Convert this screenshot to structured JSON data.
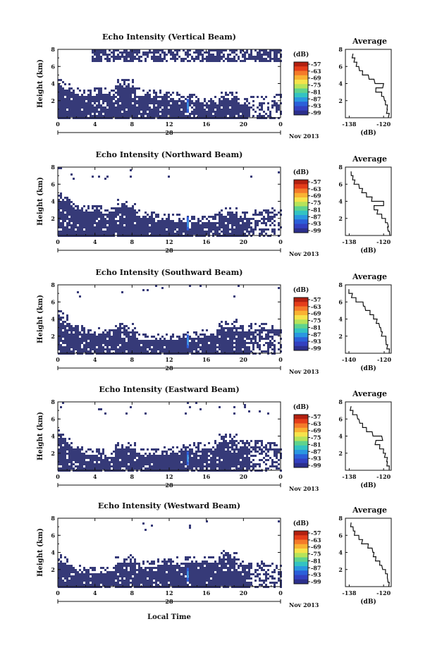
{
  "colorbar": {
    "unit": "(dB)",
    "labels": [
      "-57",
      "-63",
      "-69",
      "-75",
      "-81",
      "-87",
      "-93",
      "-99"
    ],
    "colors": [
      "#b22010",
      "#e43d1a",
      "#f47a2a",
      "#f9b233",
      "#f6e34b",
      "#b6e35a",
      "#5fd38d",
      "#33c3c2",
      "#2a97e0",
      "#2b5fd9",
      "#3340c0",
      "#2c2f8c"
    ]
  },
  "date_label": "Nov 2013",
  "day_label": "28",
  "xlabel": "Local Time",
  "ylabel": "Height (km)",
  "avg_title": "Average",
  "avg_xlabel": "(dB)",
  "chart_data": [
    {
      "type": "heatmap",
      "title": "Echo Intensity (Vertical Beam)",
      "x_ticks": [
        "0",
        "4",
        "8",
        "12",
        "16",
        "20",
        "0"
      ],
      "y_ticks": [
        "2",
        "4",
        "6",
        "8"
      ],
      "xlim": [
        0,
        24
      ],
      "ylim": [
        0,
        8
      ],
      "avg_profile": {
        "x_ticks": [
          "-138",
          "-120"
        ],
        "xlim": [
          -140,
          -116
        ],
        "y_ticks": [
          "2",
          "4",
          "6",
          "8"
        ],
        "heights": [
          0.5,
          1,
          1.5,
          2,
          2.5,
          3,
          3.5,
          4,
          4.5,
          5,
          5.5,
          6,
          6.5,
          7,
          7.5
        ],
        "values": [
          -117,
          -118,
          -118,
          -119,
          -120,
          -121,
          -124,
          -120,
          -125,
          -128,
          -131,
          -133,
          -134,
          -135,
          -136
        ]
      }
    },
    {
      "type": "heatmap",
      "title": "Echo Intensity (Northward Beam)",
      "x_ticks": [
        "0",
        "4",
        "8",
        "12",
        "16",
        "20",
        "0"
      ],
      "y_ticks": [
        "2",
        "4",
        "6",
        "8"
      ],
      "xlim": [
        0,
        24
      ],
      "ylim": [
        0,
        8
      ],
      "avg_profile": {
        "x_ticks": [
          "-138",
          "-120"
        ],
        "xlim": [
          -140,
          -116
        ],
        "y_ticks": [
          "2",
          "4",
          "6",
          "8"
        ],
        "heights": [
          0.5,
          1,
          1.5,
          2,
          2.5,
          3,
          3.5,
          4,
          4.5,
          5,
          5.5,
          6,
          6.5,
          7,
          7.5
        ],
        "values": [
          -117,
          -118,
          -118,
          -119,
          -121,
          -123,
          -125,
          -120,
          -126,
          -129,
          -131,
          -133,
          -135,
          -136,
          -137
        ]
      }
    },
    {
      "type": "heatmap",
      "title": "Echo Intensity (Southward Beam)",
      "x_ticks": [
        "0",
        "4",
        "8",
        "12",
        "16",
        "20",
        "0"
      ],
      "y_ticks": [
        "2",
        "4",
        "6",
        "8"
      ],
      "xlim": [
        0,
        24
      ],
      "ylim": [
        0,
        8
      ],
      "avg_profile": {
        "x_ticks": [
          "-140",
          "-120"
        ],
        "xlim": [
          -142,
          -116
        ],
        "y_ticks": [
          "2",
          "4",
          "6",
          "8"
        ],
        "heights": [
          0.5,
          1,
          1.5,
          2,
          2.5,
          3,
          3.5,
          4,
          4.5,
          5,
          5.5,
          6,
          6.5,
          7,
          7.5
        ],
        "values": [
          -117,
          -118,
          -119,
          -119,
          -121,
          -122,
          -123,
          -124,
          -126,
          -128,
          -131,
          -132,
          -136,
          -138,
          -140
        ]
      }
    },
    {
      "type": "heatmap",
      "title": "Echo Intensity (Eastward Beam)",
      "x_ticks": [
        "0",
        "4",
        "8",
        "12",
        "16",
        "20",
        "0"
      ],
      "y_ticks": [
        "2",
        "4",
        "6",
        "8"
      ],
      "xlim": [
        0,
        24
      ],
      "ylim": [
        0,
        8
      ],
      "avg_profile": {
        "x_ticks": [
          "-138",
          "-120"
        ],
        "xlim": [
          -140,
          -116
        ],
        "y_ticks": [
          "2",
          "4",
          "6",
          "8"
        ],
        "heights": [
          0.5,
          1,
          1.5,
          2,
          2.5,
          3,
          3.5,
          4,
          4.5,
          5,
          5.5,
          6,
          6.5,
          7,
          7.5
        ],
        "values": [
          -117,
          -118,
          -118,
          -119,
          -120,
          -122,
          -124,
          -121,
          -126,
          -129,
          -131,
          -133,
          -134,
          -136,
          -137
        ]
      }
    },
    {
      "type": "heatmap",
      "title": "Echo Intensity (Westward Beam)",
      "x_ticks": [
        "0",
        "4",
        "8",
        "12",
        "16",
        "20",
        "0"
      ],
      "y_ticks": [
        "2",
        "4",
        "6",
        "8"
      ],
      "xlim": [
        0,
        24
      ],
      "ylim": [
        0,
        8
      ],
      "avg_profile": {
        "x_ticks": [
          "-138",
          "-120"
        ],
        "xlim": [
          -140,
          -116
        ],
        "y_ticks": [
          "2",
          "4",
          "6",
          "8"
        ],
        "heights": [
          0.5,
          1,
          1.5,
          2,
          2.5,
          3,
          3.5,
          4,
          4.5,
          5,
          5.5,
          6,
          6.5,
          7,
          7.5
        ],
        "values": [
          -117,
          -118,
          -118,
          -119,
          -121,
          -122,
          -124,
          -125,
          -126,
          -128,
          -131,
          -133,
          -135,
          -136,
          -137
        ]
      }
    }
  ]
}
